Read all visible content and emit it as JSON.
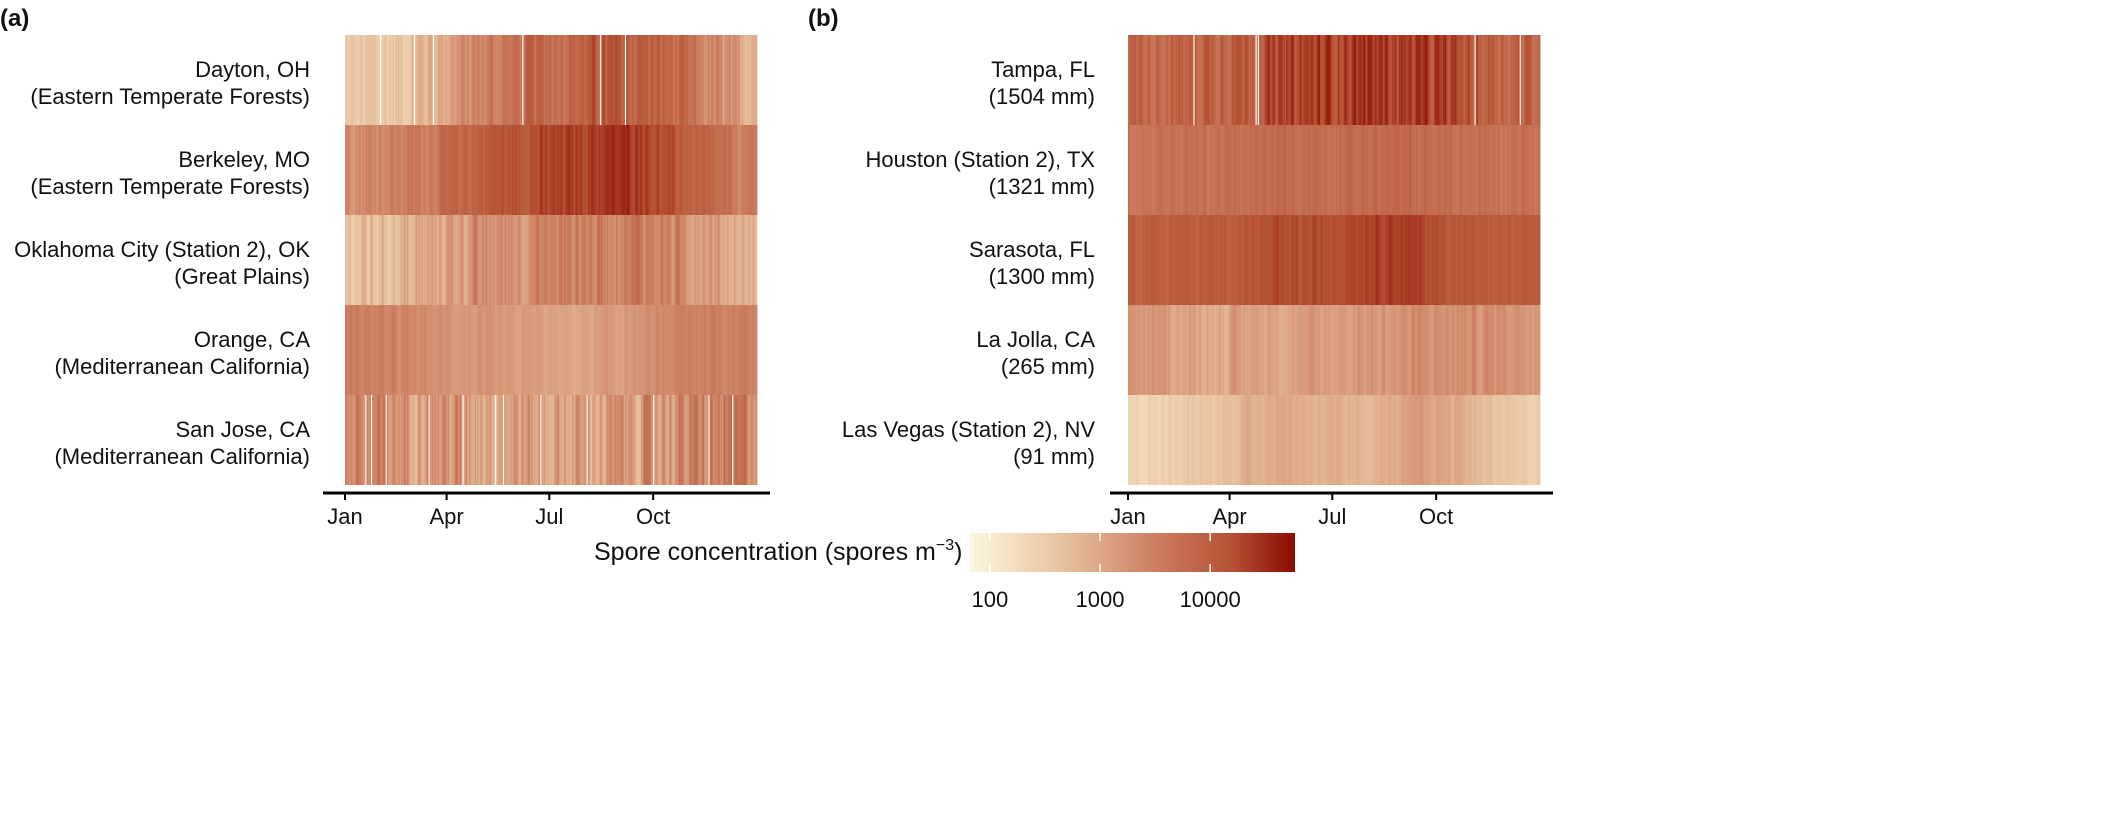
{
  "chart_data": [
    {
      "type": "heatmap",
      "panel_label": "(a)",
      "x_ticks": [
        "Jan",
        "Apr",
        "Jul",
        "Oct"
      ],
      "value_units": "log10 spores m^-3 (approximate monthly means)",
      "rows": [
        {
          "line1": "Dayton, OH",
          "line2": "(Eastern Temperate Forests)",
          "monthly_log10": [
            2.5,
            2.6,
            2.9,
            3.3,
            3.6,
            3.8,
            3.9,
            4.0,
            4.0,
            3.8,
            3.4,
            3.0
          ],
          "noise": 0.25,
          "gaps": 0.01
        },
        {
          "line1": "Berkeley, MO",
          "line2": "(Eastern Temperate Forests)",
          "monthly_log10": [
            3.4,
            3.5,
            3.6,
            3.9,
            4.1,
            4.2,
            4.3,
            4.4,
            4.45,
            4.1,
            3.8,
            3.5
          ],
          "noise": 0.15,
          "gaps": 0.0
        },
        {
          "line1": "Oklahoma City (Station 2), OK",
          "line2": "(Great Plains)",
          "monthly_log10": [
            2.7,
            2.8,
            3.0,
            3.2,
            3.3,
            3.4,
            3.5,
            3.5,
            3.6,
            3.4,
            3.2,
            2.9
          ],
          "noise": 0.25,
          "gaps": 0.0
        },
        {
          "line1": "Orange, CA",
          "line2": "(Mediterranean California)",
          "monthly_log10": [
            3.5,
            3.4,
            3.3,
            3.2,
            3.1,
            3.1,
            3.0,
            3.1,
            3.2,
            3.4,
            3.5,
            3.5
          ],
          "noise": 0.1,
          "gaps": 0.0
        },
        {
          "line1": "San Jose, CA",
          "line2": "(Mediterranean California)",
          "monthly_log10": [
            3.4,
            3.3,
            3.3,
            3.2,
            3.2,
            3.1,
            3.1,
            3.1,
            3.2,
            3.3,
            3.4,
            3.5
          ],
          "noise": 0.35,
          "gaps": 0.04
        }
      ]
    },
    {
      "type": "heatmap",
      "panel_label": "(b)",
      "x_ticks": [
        "Jan",
        "Apr",
        "Jul",
        "Oct"
      ],
      "value_units": "log10 spores m^-3 (approximate monthly means)",
      "rows": [
        {
          "line1": "Tampa, FL",
          "line2": "(1504 mm)",
          "monthly_log10": [
            3.9,
            3.9,
            4.0,
            4.1,
            4.2,
            4.3,
            4.4,
            4.4,
            4.3,
            4.2,
            4.0,
            3.9
          ],
          "noise": 0.25,
          "gaps": 0.01
        },
        {
          "line1": "Houston (Station 2), TX",
          "line2": "(1321 mm)",
          "monthly_log10": [
            3.7,
            3.7,
            3.7,
            3.7,
            3.8,
            3.8,
            3.8,
            3.8,
            3.8,
            3.7,
            3.7,
            3.7
          ],
          "noise": 0.12,
          "gaps": 0.0
        },
        {
          "line1": "Sarasota, FL",
          "line2": "(1300 mm)",
          "monthly_log10": [
            4.0,
            4.0,
            4.0,
            4.1,
            4.2,
            4.2,
            4.3,
            4.4,
            4.3,
            4.1,
            4.0,
            4.0
          ],
          "noise": 0.1,
          "gaps": 0.0
        },
        {
          "line1": "La Jolla, CA",
          "line2": "(265 mm)",
          "monthly_log10": [
            3.2,
            3.1,
            3.0,
            3.1,
            3.1,
            3.1,
            3.2,
            3.2,
            3.3,
            3.3,
            3.3,
            3.3
          ],
          "noise": 0.15,
          "gaps": 0.0
        },
        {
          "line1": "Las Vegas (Station 2), NV",
          "line2": "(91 mm)",
          "monthly_log10": [
            2.4,
            2.5,
            2.6,
            2.9,
            3.0,
            2.9,
            2.8,
            2.9,
            3.1,
            3.0,
            2.7,
            2.5
          ],
          "noise": 0.1,
          "gaps": 0.0
        }
      ]
    }
  ],
  "legend": {
    "title_main": "Spore concentration (spores m",
    "title_sup": "−3",
    "title_end": ")",
    "ticks": [
      {
        "label": "100",
        "value": 100
      },
      {
        "label": "1000",
        "value": 1000
      },
      {
        "label": "10000",
        "value": 10000
      }
    ],
    "range_log10": [
      1.82,
      4.77
    ],
    "colors": [
      "#fdf7de",
      "#e7bf9c",
      "#c9785a",
      "#b55236",
      "#8b0a00"
    ]
  }
}
